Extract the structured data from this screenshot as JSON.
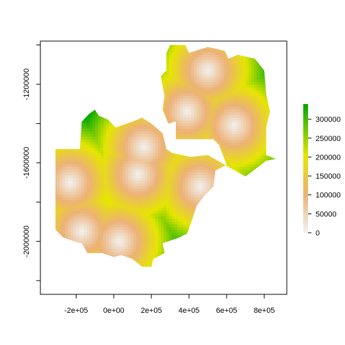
{
  "chart_data": {
    "type": "heatmap",
    "title": "",
    "xlabel": "",
    "ylabel": "",
    "xlim": [
      -390000,
      920000
    ],
    "ylim": [
      -2270000,
      -980000
    ],
    "x_ticks": [
      {
        "value": -200000,
        "label": "-2e+05"
      },
      {
        "value": 0,
        "label": "0e+00"
      },
      {
        "value": 200000,
        "label": "2e+05"
      },
      {
        "value": 400000,
        "label": "4e+05"
      },
      {
        "value": 600000,
        "label": "6e+05"
      },
      {
        "value": 800000,
        "label": "8e+05"
      }
    ],
    "y_ticks": [
      {
        "value": -1200000,
        "label": "-1200000"
      },
      {
        "value": -1600000,
        "label": "-1600000"
      },
      {
        "value": -2000000,
        "label": "-2000000"
      }
    ],
    "legend": {
      "placement": "right",
      "min": 0,
      "max": 340000,
      "ticks": [
        {
          "value": 0,
          "label": "0"
        },
        {
          "value": 50000,
          "label": "50000"
        },
        {
          "value": 100000,
          "label": "100000"
        },
        {
          "value": 150000,
          "label": "150000"
        },
        {
          "value": 200000,
          "label": "200000"
        },
        {
          "value": 250000,
          "label": "250000"
        },
        {
          "value": 300000,
          "label": "300000"
        }
      ]
    },
    "colors": [
      "#f2f2f2",
      "#ecb176",
      "#e6e600",
      "#63c600",
      "#00a600"
    ],
    "centers": [
      {
        "x": -230000,
        "y": -1700000
      },
      {
        "x": -170000,
        "y": -1950000
      },
      {
        "x": 30000,
        "y": -2000000
      },
      {
        "x": 160000,
        "y": -1520000
      },
      {
        "x": 130000,
        "y": -1660000
      },
      {
        "x": 460000,
        "y": -1720000
      },
      {
        "x": 500000,
        "y": -1130000
      },
      {
        "x": 390000,
        "y": -1340000
      },
      {
        "x": 640000,
        "y": -1410000
      }
    ],
    "region": [
      [
        -310000,
        -1530000
      ],
      [
        -180000,
        -1530000
      ],
      [
        -170000,
        -1390000
      ],
      [
        -130000,
        -1350000
      ],
      [
        -100000,
        -1330000
      ],
      [
        -80000,
        -1360000
      ],
      [
        -30000,
        -1380000
      ],
      [
        10000,
        -1420000
      ],
      [
        100000,
        -1390000
      ],
      [
        150000,
        -1370000
      ],
      [
        200000,
        -1400000
      ],
      [
        260000,
        -1450000
      ],
      [
        280000,
        -1530000
      ],
      [
        310000,
        -1550000
      ],
      [
        410000,
        -1570000
      ],
      [
        500000,
        -1560000
      ],
      [
        590000,
        -1610000
      ],
      [
        700000,
        -1670000
      ],
      [
        810000,
        -1590000
      ],
      [
        860000,
        -1580000
      ],
      [
        810000,
        -1560000
      ],
      [
        810000,
        -1420000
      ],
      [
        830000,
        -1340000
      ],
      [
        810000,
        -1250000
      ],
      [
        800000,
        -1130000
      ],
      [
        750000,
        -1070000
      ],
      [
        660000,
        -1050000
      ],
      [
        610000,
        -1070000
      ],
      [
        590000,
        -1030000
      ],
      [
        500000,
        -1010000
      ],
      [
        400000,
        -1040000
      ],
      [
        380000,
        -1000000
      ],
      [
        300000,
        -1000000
      ],
      [
        280000,
        -1040000
      ],
      [
        280000,
        -1130000
      ],
      [
        250000,
        -1160000
      ],
      [
        270000,
        -1260000
      ],
      [
        260000,
        -1330000
      ],
      [
        290000,
        -1400000
      ],
      [
        330000,
        -1390000
      ],
      [
        330000,
        -1480000
      ],
      [
        530000,
        -1480000
      ],
      [
        560000,
        -1510000
      ],
      [
        600000,
        -1610000
      ],
      [
        540000,
        -1640000
      ],
      [
        530000,
        -1720000
      ],
      [
        480000,
        -1770000
      ],
      [
        440000,
        -1820000
      ],
      [
        420000,
        -1880000
      ],
      [
        390000,
        -1960000
      ],
      [
        350000,
        -1980000
      ],
      [
        260000,
        -2010000
      ],
      [
        270000,
        -2060000
      ],
      [
        210000,
        -2090000
      ],
      [
        200000,
        -2130000
      ],
      [
        150000,
        -2130000
      ],
      [
        100000,
        -2090000
      ],
      [
        40000,
        -2070000
      ],
      [
        0,
        -2080000
      ],
      [
        -60000,
        -2060000
      ],
      [
        -140000,
        -2060000
      ],
      [
        -170000,
        -2010000
      ],
      [
        -210000,
        -2000000
      ],
      [
        -270000,
        -1980000
      ],
      [
        -310000,
        -1940000
      ],
      [
        -310000,
        -1780000
      ],
      [
        -310000,
        -1530000
      ]
    ]
  }
}
